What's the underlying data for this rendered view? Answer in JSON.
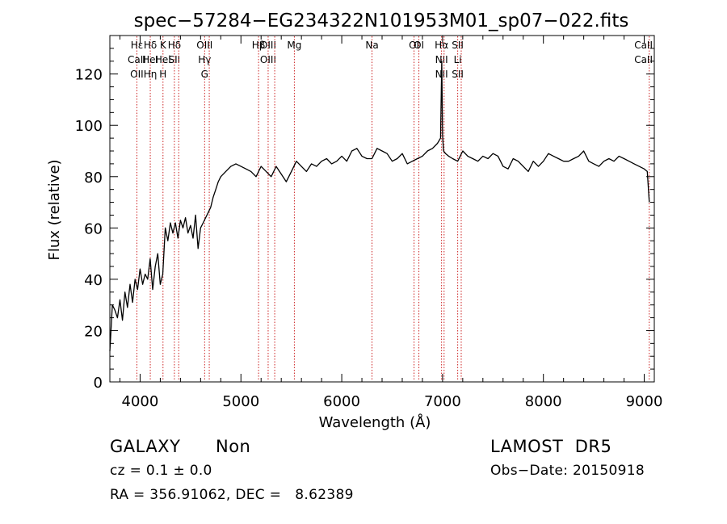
{
  "chart_data": {
    "type": "line",
    "title": "spec−57284−EG234322N101953M01_sp07−022.fits",
    "xlabel": "Wavelength (Å)",
    "ylabel": "Flux (relative)",
    "xlim": [
      3700,
      9100
    ],
    "ylim": [
      0,
      135
    ],
    "x_ticks": [
      4000,
      5000,
      6000,
      7000,
      8000,
      9000
    ],
    "y_ticks": [
      0,
      20,
      40,
      60,
      80,
      100,
      120
    ],
    "grid": false,
    "line_color": "#000000",
    "marker_color": "#cc2222",
    "lines": [
      {
        "wavelength": 3968,
        "labels": [
          "Hε",
          "CaII",
          "OII"
        ]
      },
      {
        "wavelength": 4101,
        "labels": [
          "Hδ",
          "HeI",
          "Hη"
        ]
      },
      {
        "wavelength": 4227,
        "labels": [
          "K",
          "Hel",
          "H"
        ]
      },
      {
        "wavelength": 4340,
        "labels": [
          "Hδ",
          "SII"
        ]
      },
      {
        "wavelength": 4383,
        "labels": []
      },
      {
        "wavelength": 4640,
        "labels": [
          "OIII",
          "Hγ",
          "G"
        ]
      },
      {
        "wavelength": 4686,
        "labels": []
      },
      {
        "wavelength": 5175,
        "labels": [
          "Hβ"
        ]
      },
      {
        "wavelength": 5270,
        "labels": [
          "OIII",
          "OIII"
        ]
      },
      {
        "wavelength": 5335,
        "labels": []
      },
      {
        "wavelength": 5530,
        "labels": [
          "Mg"
        ]
      },
      {
        "wavelength": 6300,
        "labels": [
          "Na"
        ]
      },
      {
        "wavelength": 6717,
        "labels": [
          "OI"
        ]
      },
      {
        "wavelength": 6765,
        "labels": [
          "OI"
        ]
      },
      {
        "wavelength": 6990,
        "labels": [
          "Hα",
          "NII",
          "NII"
        ]
      },
      {
        "wavelength": 7015,
        "labels": []
      },
      {
        "wavelength": 7150,
        "labels": [
          "SII",
          "Li",
          "SII"
        ]
      },
      {
        "wavelength": 7185,
        "labels": []
      },
      {
        "wavelength": 9050,
        "labels": [
          "CaII",
          "CaII"
        ]
      }
    ],
    "spectrum": {
      "x": [
        3700,
        3725,
        3750,
        3775,
        3800,
        3825,
        3850,
        3875,
        3900,
        3925,
        3950,
        3975,
        4000,
        4025,
        4050,
        4075,
        4100,
        4125,
        4150,
        4175,
        4200,
        4225,
        4250,
        4275,
        4300,
        4325,
        4350,
        4375,
        4400,
        4425,
        4450,
        4475,
        4500,
        4525,
        4550,
        4575,
        4600,
        4625,
        4650,
        4675,
        4700,
        4725,
        4750,
        4775,
        4800,
        4850,
        4900,
        4950,
        5000,
        5050,
        5100,
        5150,
        5200,
        5250,
        5300,
        5350,
        5400,
        5450,
        5500,
        5550,
        5600,
        5650,
        5700,
        5750,
        5800,
        5850,
        5900,
        5950,
        6000,
        6050,
        6100,
        6150,
        6200,
        6250,
        6300,
        6350,
        6400,
        6450,
        6500,
        6550,
        6600,
        6650,
        6700,
        6750,
        6800,
        6850,
        6900,
        6950,
        6980,
        6992,
        7000,
        7010,
        7030,
        7060,
        7100,
        7150,
        7200,
        7250,
        7300,
        7350,
        7400,
        7450,
        7500,
        7550,
        7600,
        7650,
        7700,
        7750,
        7800,
        7850,
        7900,
        7950,
        8000,
        8050,
        8100,
        8150,
        8200,
        8250,
        8300,
        8350,
        8400,
        8450,
        8500,
        8550,
        8600,
        8650,
        8700,
        8750,
        8800,
        8850,
        8900,
        8950,
        9000,
        9030,
        9050
      ],
      "y": [
        12,
        30,
        28,
        25,
        32,
        24,
        35,
        29,
        38,
        31,
        40,
        36,
        44,
        38,
        42,
        40,
        48,
        36,
        45,
        50,
        38,
        42,
        60,
        55,
        62,
        58,
        62,
        56,
        63,
        60,
        64,
        58,
        61,
        56,
        65,
        52,
        60,
        62,
        64,
        66,
        68,
        72,
        75,
        78,
        80,
        82,
        84,
        85,
        84,
        83,
        82,
        80,
        84,
        82,
        80,
        84,
        81,
        78,
        82,
        86,
        84,
        82,
        85,
        84,
        86,
        87,
        85,
        86,
        88,
        86,
        90,
        91,
        88,
        87,
        87,
        91,
        90,
        89,
        86,
        87,
        89,
        85,
        86,
        87,
        88,
        90,
        91,
        93,
        95,
        125,
        96,
        90,
        89,
        88,
        87,
        86,
        90,
        88,
        87,
        86,
        88,
        87,
        89,
        88,
        84,
        83,
        87,
        86,
        84,
        82,
        86,
        84,
        86,
        89,
        88,
        87,
        86,
        86,
        87,
        88,
        90,
        86,
        85,
        84,
        86,
        87,
        86,
        88,
        87,
        86,
        85,
        84,
        83,
        82,
        70
      ]
    }
  },
  "info": {
    "obj_class": "GALAXY",
    "subclass": "Non",
    "survey": "LAMOST  DR5",
    "cz": "cz = 0.1 ± 0.0",
    "obs_date": "Obs−Date: 20150918",
    "radec": "RA = 356.91062, DEC =   8.62389"
  }
}
